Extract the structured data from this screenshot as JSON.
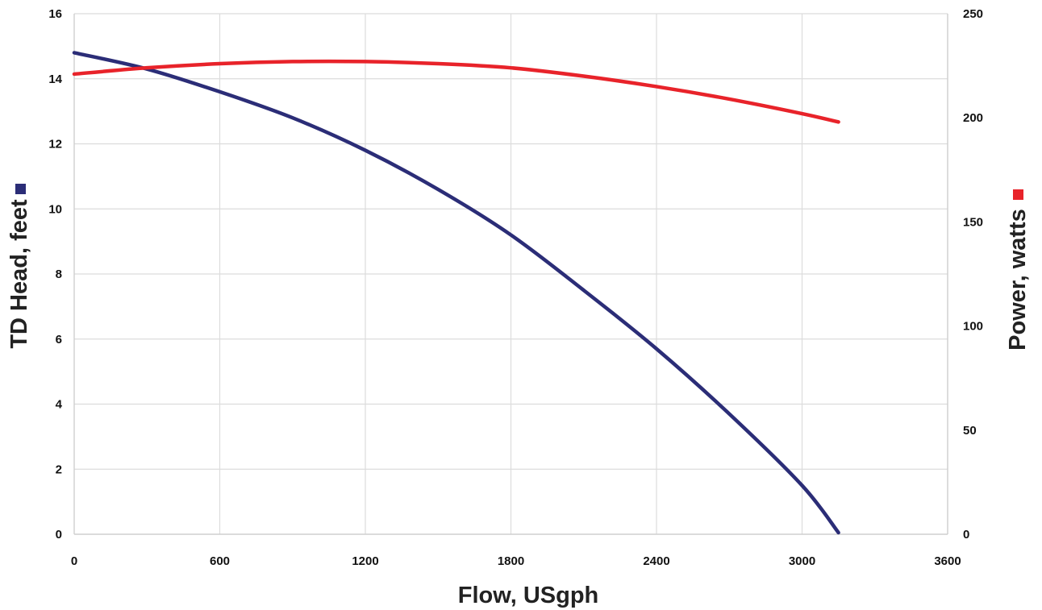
{
  "chart_data": {
    "type": "line",
    "xlabel": "Flow, USgph",
    "ylabel_left": "TD Head, feet",
    "ylabel_right": "Power, watts",
    "xlim": [
      0,
      3600
    ],
    "ylim_left": [
      0,
      16
    ],
    "ylim_right": [
      0,
      250
    ],
    "x_ticks": [
      "0",
      "600",
      "1200",
      "1800",
      "2400",
      "3000",
      "3600"
    ],
    "y_left_ticks": [
      "0",
      "2",
      "4",
      "6",
      "8",
      "10",
      "12",
      "14",
      "16"
    ],
    "y_right_ticks": [
      "0",
      "50",
      "100",
      "150",
      "200",
      "250"
    ],
    "grid": true,
    "series": [
      {
        "axis": "left",
        "color": "#2b2d77",
        "marker_color": "#2b2d77",
        "x": [
          0,
          300,
          600,
          900,
          1200,
          1500,
          1800,
          2100,
          2400,
          2700,
          3000,
          3150
        ],
        "y": [
          14.8,
          14.3,
          13.6,
          12.8,
          11.8,
          10.6,
          9.2,
          7.5,
          5.7,
          3.7,
          1.5,
          0.05
        ]
      },
      {
        "axis": "right",
        "color": "#e8232a",
        "marker_color": "#e8232a",
        "x": [
          0,
          300,
          600,
          900,
          1200,
          1500,
          1800,
          2100,
          2400,
          2700,
          3000,
          3150
        ],
        "y": [
          221,
          224,
          226,
          227,
          227,
          226,
          224,
          220,
          215,
          209,
          202,
          198
        ]
      }
    ]
  }
}
